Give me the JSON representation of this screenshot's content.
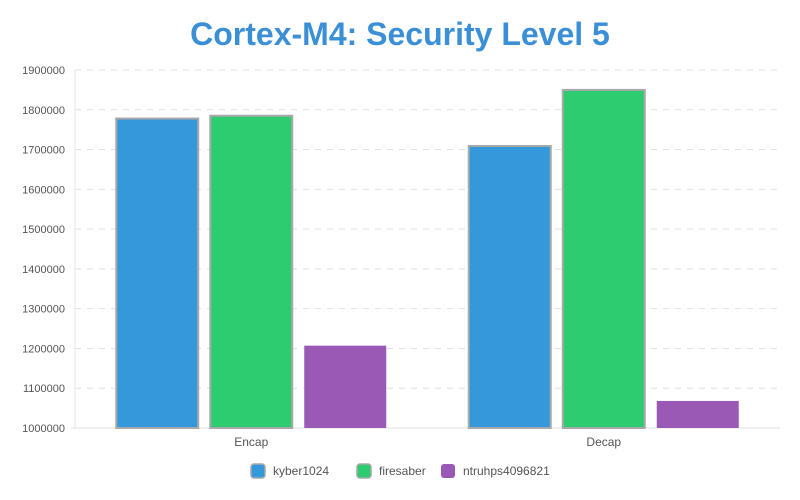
{
  "chart_data": {
    "type": "bar",
    "title": "Cortex-M4: Security Level 5",
    "categories": [
      "Encap",
      "Decap"
    ],
    "series": [
      {
        "name": "kyber1024",
        "values": [
          1778000,
          1709000
        ],
        "color": "#3498db"
      },
      {
        "name": "firesaber",
        "values": [
          1785000,
          1850000
        ],
        "color": "#2ecc71"
      },
      {
        "name": "ntruhps4096821",
        "values": [
          1207000,
          1068000
        ],
        "color": "#9b59b6"
      }
    ],
    "ylim": [
      1000000,
      1900000
    ],
    "yticks": [
      1000000,
      1100000,
      1200000,
      1300000,
      1400000,
      1500000,
      1600000,
      1700000,
      1800000,
      1900000
    ],
    "xlabel": "",
    "ylabel": "",
    "grid": "horizontal-dashed",
    "legend": "bottom-center"
  }
}
